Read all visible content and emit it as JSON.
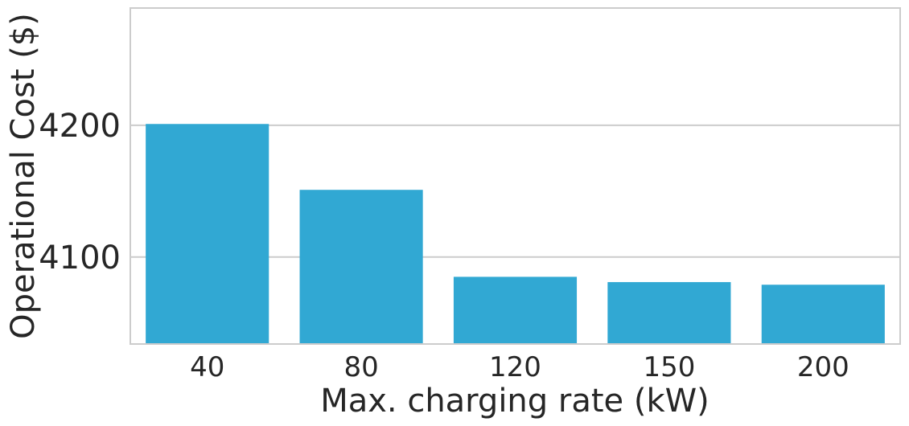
{
  "chart_data": {
    "type": "bar",
    "categories": [
      "40",
      "80",
      "120",
      "150",
      "200"
    ],
    "values": [
      4201,
      4151,
      4085,
      4081,
      4079
    ],
    "xlabel": "Max. charging rate (kW)",
    "ylabel": "Operational Cost ($)",
    "ylim": [
      4034,
      4289
    ],
    "yticks": [
      4100,
      4200
    ],
    "grid": true,
    "colors": {
      "bar": "#31a8d3",
      "grid": "#cccccc",
      "frame": "#cccccc",
      "text": "#262626"
    }
  }
}
